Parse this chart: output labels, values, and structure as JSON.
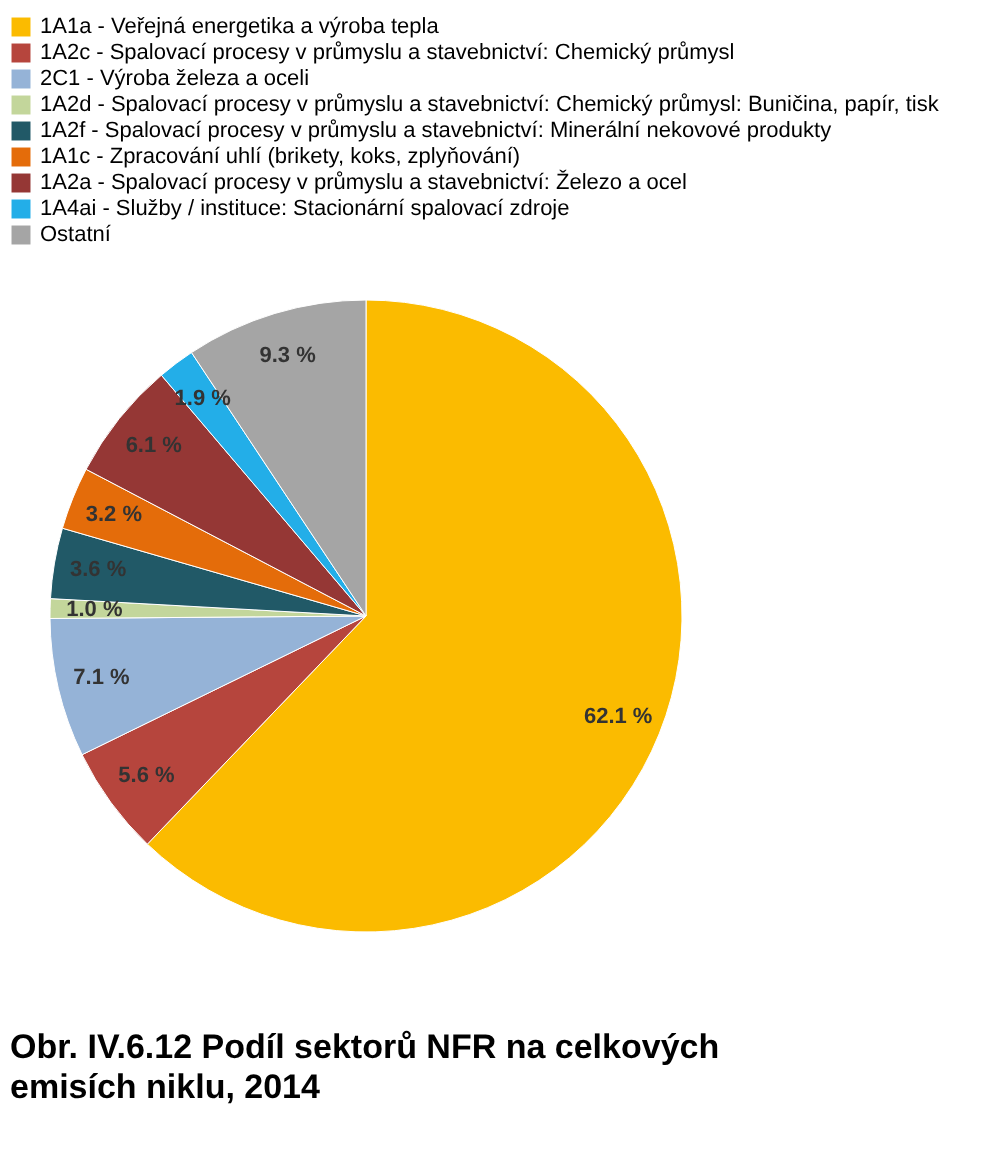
{
  "chart_data": {
    "type": "pie",
    "title": "Obr. IV.6.12  Podíl sektorů NFR na celkových emisích niklu, 2014",
    "categories": [
      "1A1a - Veřejná energetika a výroba tepla",
      "1A2c - Spalovací procesy v průmyslu a stavebnictví: Chemický průmysl",
      "2C1 - Výroba železa a oceli",
      "1A2d - Spalovací procesy v průmyslu a stavebnictví: Chemický průmysl: Buničina, papír, tisk",
      "1A2f - Spalovací procesy v průmyslu a stavebnictví: Minerální nekovové produkty",
      "1A1c - Zpracování uhlí (brikety, koks, zplyňování)",
      "1A2a - Spalovací procesy v průmyslu a stavebnictví: Železo a ocel",
      "1A4ai - Služby / instituce: Stacionární spalovací zdroje",
      "Ostatní"
    ],
    "values": [
      62.1,
      5.6,
      7.1,
      1.0,
      3.6,
      3.2,
      6.1,
      1.9,
      9.3
    ],
    "value_labels": [
      "62.1 %",
      "5.6 %",
      "7.1 %",
      "1.0 %",
      "3.6 %",
      "3.2 %",
      "6.1 %",
      "1.9 %",
      "9.3 %"
    ],
    "colors": [
      "#fbbb00",
      "#b6453d",
      "#95b3d7",
      "#c3d69b",
      "#215967",
      "#e46c0a",
      "#953735",
      "#23aee8",
      "#a5a5a5"
    ],
    "legend": "top"
  }
}
